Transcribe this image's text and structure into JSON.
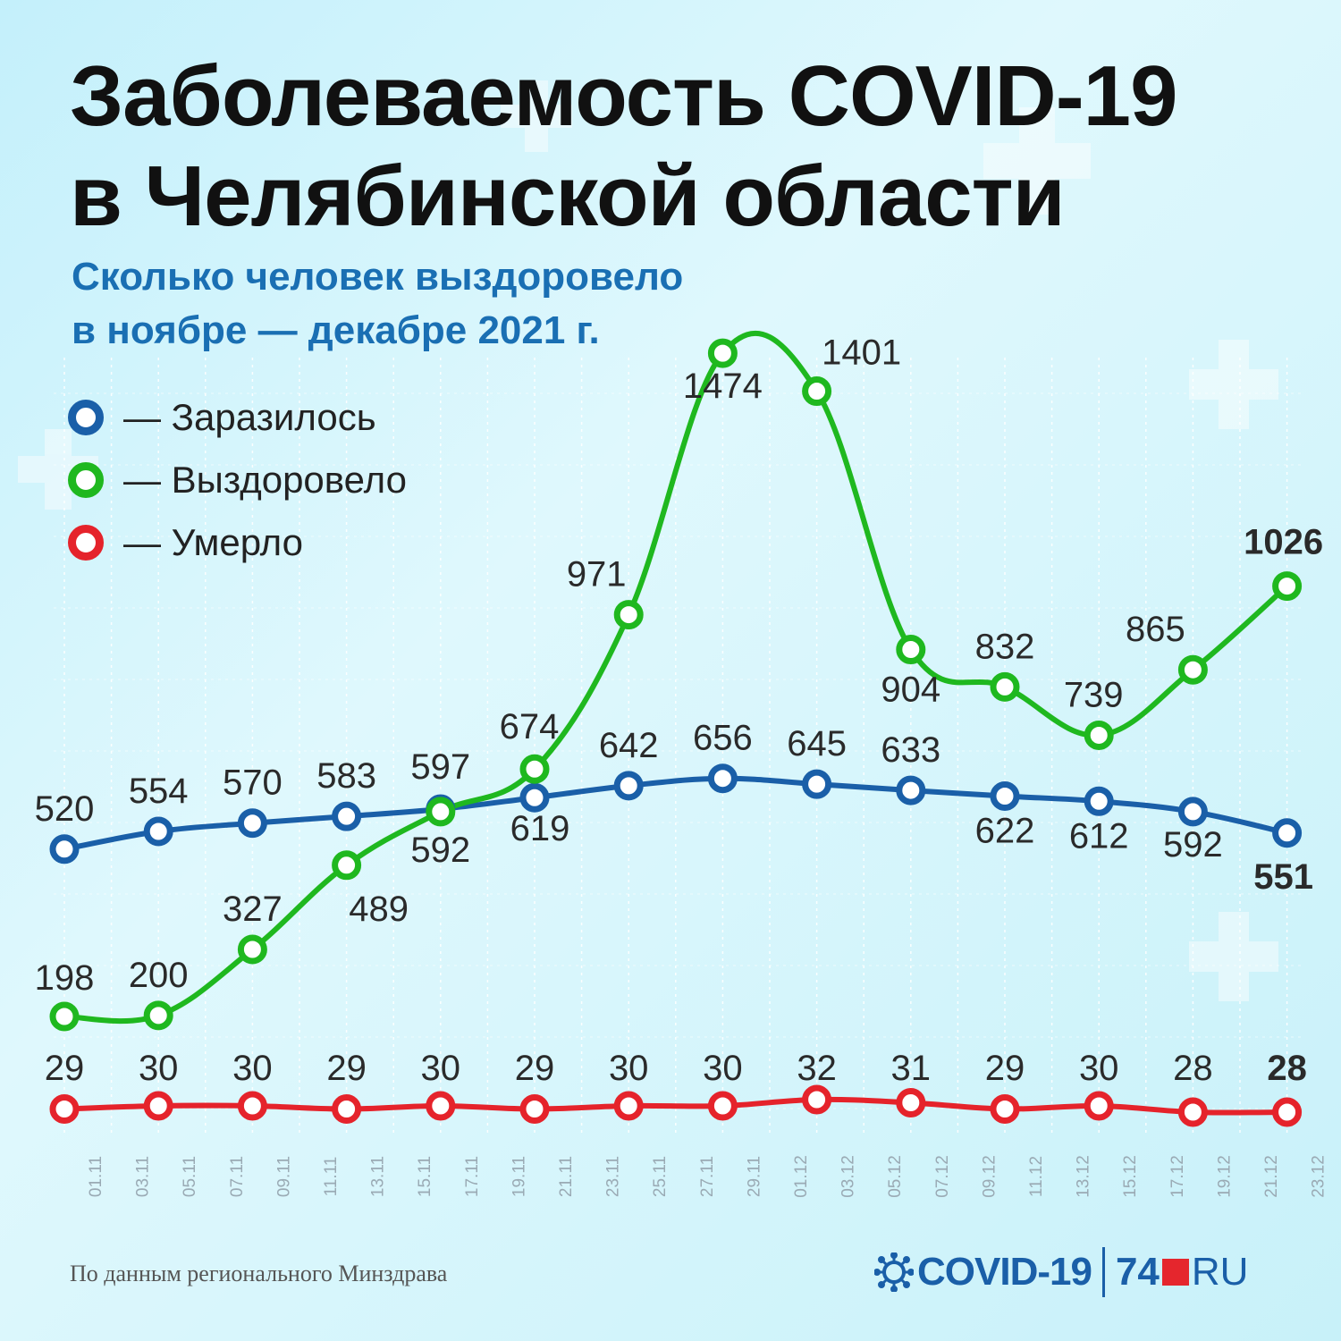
{
  "title": {
    "line1": "Заболеваемость COVID-19",
    "line2": "в Челябинской области"
  },
  "subtitle": {
    "line1": "Сколько человек выздоровело",
    "line2": "в ноябре — декабре 2021 г."
  },
  "legend": [
    {
      "label": "— Заразилось",
      "color": "#1a5fa8"
    },
    {
      "label": "— Выздоровело",
      "color": "#1fb81f"
    },
    {
      "label": "— Умерло",
      "color": "#e5232b"
    }
  ],
  "source": "По данным регионального Минздрава",
  "logo": {
    "covid": "COVID-19",
    "num": "74",
    "ru": "RU"
  },
  "chart_data": {
    "type": "line",
    "x_ticks": [
      "01.11",
      "03.11",
      "05.11",
      "07.11",
      "09.11",
      "11.11",
      "13.11",
      "15.11",
      "17.11",
      "19.11",
      "21.11",
      "23.11",
      "25.11",
      "27.11",
      "29.11",
      "01.12",
      "03.12",
      "05.12",
      "07.12",
      "09.12",
      "11.12",
      "13.12",
      "15.12",
      "17.12",
      "19.12",
      "21.12",
      "23.12"
    ],
    "categories": [
      "01.11",
      "05.11",
      "09.11",
      "13.11",
      "17.11",
      "21.11",
      "25.11",
      "29.11",
      "03.12",
      "07.12",
      "11.12",
      "15.12",
      "19.12",
      "23.12"
    ],
    "series": [
      {
        "name": "Заразилось",
        "color": "#1a5fa8",
        "values": [
          520,
          554,
          570,
          583,
          597,
          619,
          642,
          656,
          645,
          633,
          622,
          612,
          592,
          551
        ]
      },
      {
        "name": "Выздоровело",
        "color": "#1fb81f",
        "values": [
          198,
          200,
          327,
          489,
          592,
          674,
          971,
          1474,
          1401,
          904,
          832,
          739,
          865,
          1026
        ]
      },
      {
        "name": "Умерло",
        "color": "#e5232b",
        "values": [
          29,
          30,
          30,
          29,
          30,
          29,
          30,
          30,
          32,
          31,
          29,
          30,
          28,
          28
        ]
      }
    ],
    "grid": true,
    "legend_position": "top-left"
  }
}
